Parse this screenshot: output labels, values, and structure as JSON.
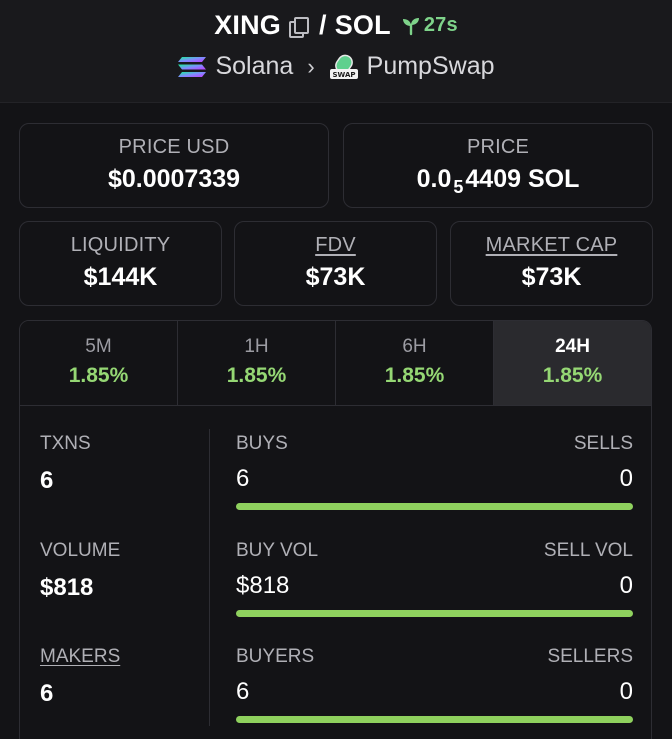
{
  "header": {
    "base_token": "XING",
    "separator": "/",
    "quote_token": "SOL",
    "age": "27s",
    "chain": "Solana",
    "dex": "PumpSwap",
    "dex_icon_text": "SWAP"
  },
  "price_usd": {
    "label": "PRICE USD",
    "value": "$0.0007339"
  },
  "price_native": {
    "label": "PRICE",
    "prefix": "0.0",
    "zeros": "5",
    "suffix": "4409 SOL"
  },
  "liquidity": {
    "label": "LIQUIDITY",
    "value": "$144K"
  },
  "fdv": {
    "label": "FDV",
    "value": "$73K"
  },
  "market_cap": {
    "label": "MARKET CAP",
    "value": "$73K"
  },
  "tabs": [
    {
      "label": "5M",
      "value": "1.85%"
    },
    {
      "label": "1H",
      "value": "1.85%"
    },
    {
      "label": "6H",
      "value": "1.85%"
    },
    {
      "label": "24H",
      "value": "1.85%"
    }
  ],
  "active_tab": "24H",
  "stats": {
    "txns": {
      "label": "TXNS",
      "value": "6",
      "buys_label": "BUYS",
      "buys": "6",
      "sells_label": "SELLS",
      "sells": "0",
      "buy_ratio": 1.0
    },
    "volume": {
      "label": "VOLUME",
      "value": "$818",
      "buys_label": "BUY VOL",
      "buys": "$818",
      "sells_label": "SELL VOL",
      "sells": "0",
      "buy_ratio": 1.0
    },
    "makers": {
      "label": "MAKERS",
      "value": "6",
      "buys_label": "BUYERS",
      "buys": "6",
      "sells_label": "SELLERS",
      "sells": "0",
      "buy_ratio": 1.0
    }
  },
  "colors": {
    "positive": "#95d774",
    "bar_buy": "#8fd15e",
    "age_green": "#7ed38a",
    "background": "#131316"
  }
}
